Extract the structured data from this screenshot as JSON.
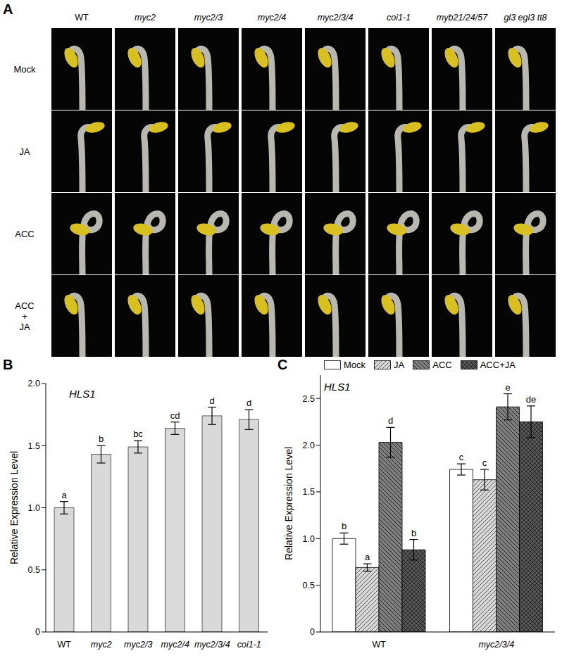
{
  "panel_a": {
    "label": "A",
    "columns": [
      "WT",
      "myc2",
      "myc2/3",
      "myc2/4",
      "myc2/3/4",
      "coi1-1",
      "myb21/24/57",
      "gl3 egl3 tt8"
    ],
    "rows": [
      "Mock",
      "JA",
      "ACC",
      "ACC\n+\nJA"
    ]
  },
  "chart_data": [
    {
      "type": "bar",
      "panel_label": "B",
      "title": "HLS1",
      "ylabel": "Relative Expression Level",
      "categories": [
        "WT",
        "myc2",
        "myc2/3",
        "myc2/4",
        "myc2/3/4",
        "coi1-1"
      ],
      "values": [
        1.0,
        1.43,
        1.49,
        1.64,
        1.74,
        1.71
      ],
      "errors": [
        0.05,
        0.07,
        0.05,
        0.05,
        0.07,
        0.08
      ],
      "annotations": [
        "a",
        "b",
        "bc",
        "cd",
        "d",
        "d"
      ],
      "color": "#d9d9d9",
      "ylim": [
        0,
        2
      ],
      "yticks": [
        0,
        0.5,
        {
          "value": 1,
          "label": "1.0"
        },
        1.5,
        {
          "value": 2,
          "label": "2.0"
        }
      ]
    },
    {
      "type": "bar",
      "panel_label": "C",
      "title": "HLS1",
      "ylabel": "Relative Expression Level",
      "categories": [
        "WT",
        "myc2/3/4"
      ],
      "series": [
        {
          "name": "Mock",
          "color": "#ffffff",
          "values": [
            1.0,
            1.74
          ],
          "errors": [
            0.06,
            0.06
          ],
          "annotations": [
            "b",
            "c"
          ]
        },
        {
          "name": "JA",
          "color": "#d9d9d9",
          "values": [
            0.69,
            1.63
          ],
          "errors": [
            0.04,
            0.11
          ],
          "annotations": [
            "a",
            "c"
          ]
        },
        {
          "name": "ACC",
          "color": "#808080",
          "values": [
            2.03,
            2.41
          ],
          "errors": [
            0.16,
            0.14
          ],
          "annotations": [
            "d",
            "e"
          ]
        },
        {
          "name": "ACC+JA",
          "color": "#595959",
          "values": [
            0.88,
            2.25
          ],
          "errors": [
            0.11,
            0.17
          ],
          "annotations": [
            "b",
            "de"
          ]
        }
      ],
      "legend": "top",
      "ylim": [
        0,
        2.75
      ],
      "yticks": [
        0,
        0.5,
        {
          "value": 1,
          "label": "1.0"
        },
        1.5,
        {
          "value": 2,
          "label": "2.0"
        },
        2.5
      ]
    }
  ]
}
